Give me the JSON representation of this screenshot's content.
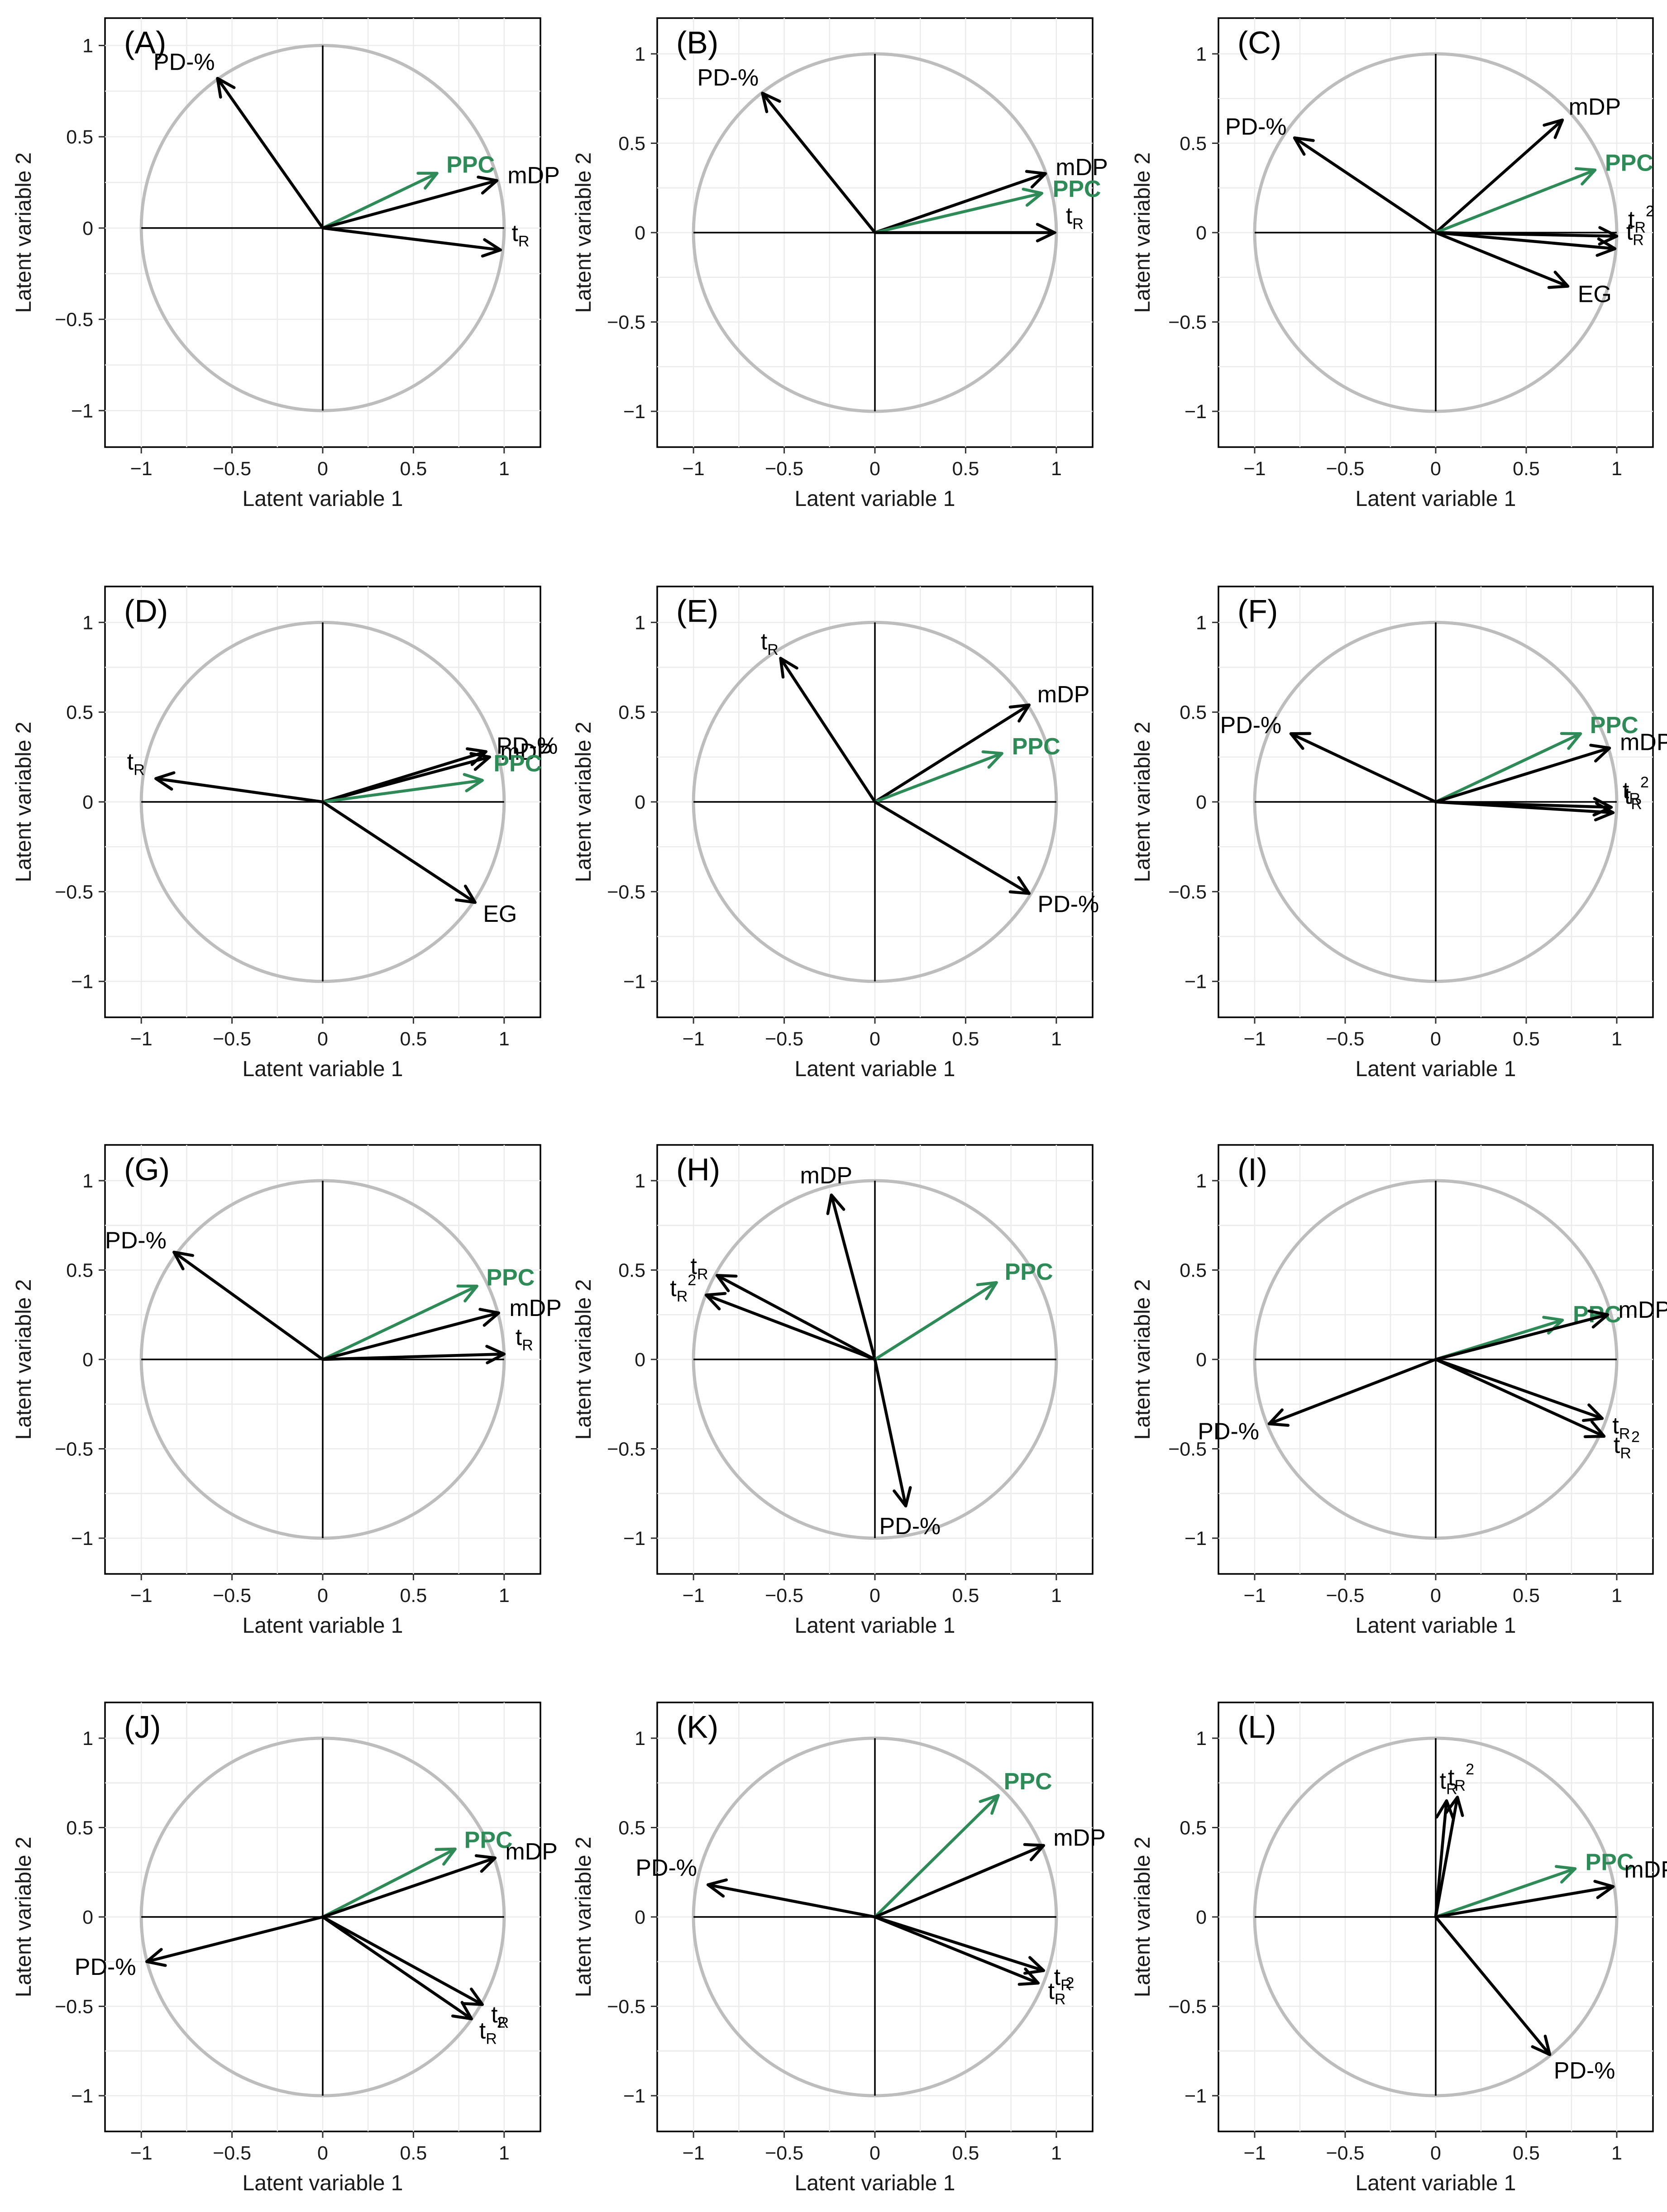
{
  "chart_data": [
    {
      "type": "scatter",
      "panel": "(A)",
      "xlabel": "Latent variable 1",
      "ylabel": "Latent variable 2",
      "xlim": [
        -1.2,
        1.2
      ],
      "ylim": [
        -1.2,
        1.15
      ],
      "xticks": [
        "-1",
        "-0.5",
        "0",
        "0.5",
        "1"
      ],
      "yticks": [
        "-1",
        "-0.5",
        "0",
        "0.5",
        "1"
      ],
      "vectors": [
        {
          "label": "PD-%",
          "x": -0.58,
          "y": 0.82,
          "color": "black"
        },
        {
          "label": "PPC",
          "x": 0.63,
          "y": 0.3,
          "color": "green"
        },
        {
          "label": "mDP",
          "x": 0.96,
          "y": 0.26,
          "color": "black"
        },
        {
          "label": "t",
          "sub": "R",
          "x": 0.98,
          "y": -0.12,
          "color": "black"
        }
      ]
    },
    {
      "type": "scatter",
      "panel": "(B)",
      "xlabel": "Latent variable 1",
      "ylabel": "Latent variable 2",
      "xlim": [
        -1.2,
        1.2
      ],
      "ylim": [
        -1.2,
        1.2
      ],
      "xticks": [
        "-1",
        "-0.5",
        "0",
        "0.5",
        "1"
      ],
      "yticks": [
        "-1",
        "-0.5",
        "0",
        "0.5",
        "1"
      ],
      "vectors": [
        {
          "label": "PD-%",
          "x": -0.62,
          "y": 0.78,
          "color": "black"
        },
        {
          "label": "mDP",
          "x": 0.94,
          "y": 0.33,
          "color": "black"
        },
        {
          "label": "PPC",
          "x": 0.92,
          "y": 0.22,
          "color": "green"
        },
        {
          "label": "t",
          "sub": "R",
          "x": 0.99,
          "y": 0.0,
          "color": "black"
        }
      ]
    },
    {
      "type": "scatter",
      "panel": "(C)",
      "xlabel": "Latent variable 1",
      "ylabel": "Latent variable 2",
      "xlim": [
        -1.2,
        1.2
      ],
      "ylim": [
        -1.2,
        1.2
      ],
      "xticks": [
        "-1",
        "-0.5",
        "0",
        "0.5",
        "1"
      ],
      "yticks": [
        "-1",
        "-0.5",
        "0",
        "0.5",
        "1"
      ],
      "vectors": [
        {
          "label": "PD-%",
          "x": -0.78,
          "y": 0.53,
          "color": "black"
        },
        {
          "label": "mDP",
          "x": 0.7,
          "y": 0.63,
          "color": "black"
        },
        {
          "label": "PPC",
          "x": 0.88,
          "y": 0.35,
          "color": "green"
        },
        {
          "label": "t",
          "sub": "R",
          "sup": "2",
          "x": 1.0,
          "y": -0.02,
          "color": "black"
        },
        {
          "label": "t",
          "sub": "R",
          "x": 0.99,
          "y": -0.09,
          "color": "black"
        },
        {
          "label": "EG",
          "x": 0.73,
          "y": -0.3,
          "color": "black"
        }
      ]
    },
    {
      "type": "scatter",
      "panel": "(D)",
      "xlabel": "Latent variable 1",
      "ylabel": "Latent variable 2",
      "xlim": [
        -1.2,
        1.2
      ],
      "ylim": [
        -1.2,
        1.2
      ],
      "xticks": [
        "-1",
        "-0.5",
        "0",
        "0.5",
        "1"
      ],
      "yticks": [
        "-1",
        "-0.5",
        "0",
        "0.5",
        "1"
      ],
      "vectors": [
        {
          "label": "PD-%",
          "x": 0.9,
          "y": 0.28,
          "color": "black"
        },
        {
          "label": "mDP",
          "x": 0.92,
          "y": 0.25,
          "color": "black"
        },
        {
          "label": "PPC",
          "x": 0.88,
          "y": 0.12,
          "color": "green"
        },
        {
          "label": "t",
          "sub": "R",
          "x": -0.92,
          "y": 0.13,
          "color": "black"
        },
        {
          "label": "EG",
          "x": 0.84,
          "y": -0.56,
          "color": "black"
        }
      ]
    },
    {
      "type": "scatter",
      "panel": "(E)",
      "xlabel": "Latent variable 1",
      "ylabel": "Latent variable 2",
      "xlim": [
        -1.2,
        1.2
      ],
      "ylim": [
        -1.2,
        1.2
      ],
      "xticks": [
        "-1",
        "-0.5",
        "0",
        "0.5",
        "1"
      ],
      "yticks": [
        "-1",
        "-0.5",
        "0",
        "0.5",
        "1"
      ],
      "vectors": [
        {
          "label": "t",
          "sub": "R",
          "x": -0.52,
          "y": 0.8,
          "color": "black"
        },
        {
          "label": "mDP",
          "x": 0.85,
          "y": 0.54,
          "color": "black"
        },
        {
          "label": "PPC",
          "x": 0.7,
          "y": 0.27,
          "color": "green"
        },
        {
          "label": "PD-%",
          "x": 0.85,
          "y": -0.51,
          "color": "black"
        }
      ]
    },
    {
      "type": "scatter",
      "panel": "(F)",
      "xlabel": "Latent variable 1",
      "ylabel": "Latent variable 2",
      "xlim": [
        -1.2,
        1.2
      ],
      "ylim": [
        -1.2,
        1.2
      ],
      "xticks": [
        "-1",
        "-0.5",
        "0",
        "0.5",
        "1"
      ],
      "yticks": [
        "-1",
        "-0.5",
        "0",
        "0.5",
        "1"
      ],
      "vectors": [
        {
          "label": "PD-%",
          "x": -0.8,
          "y": 0.38,
          "color": "black"
        },
        {
          "label": "PPC",
          "x": 0.8,
          "y": 0.38,
          "color": "green"
        },
        {
          "label": "mDP",
          "x": 0.96,
          "y": 0.3,
          "color": "black"
        },
        {
          "label": "t",
          "sub": "R",
          "sup": "2",
          "x": 0.97,
          "y": -0.03,
          "color": "black"
        },
        {
          "label": "t",
          "sub": "R",
          "x": 0.98,
          "y": -0.06,
          "color": "black"
        }
      ]
    },
    {
      "type": "scatter",
      "panel": "(G)",
      "xlabel": "Latent variable 1",
      "ylabel": "Latent variable 2",
      "xlim": [
        -1.2,
        1.2
      ],
      "ylim": [
        -1.2,
        1.2
      ],
      "xticks": [
        "-1",
        "-0.5",
        "0",
        "0.5",
        "1"
      ],
      "yticks": [
        "-1",
        "-0.5",
        "0",
        "0.5",
        "1"
      ],
      "vectors": [
        {
          "label": "PD-%",
          "x": -0.82,
          "y": 0.6,
          "color": "black"
        },
        {
          "label": "PPC",
          "x": 0.85,
          "y": 0.41,
          "color": "green"
        },
        {
          "label": "mDP",
          "x": 0.97,
          "y": 0.26,
          "color": "black"
        },
        {
          "label": "t",
          "sub": "R",
          "x": 1.0,
          "y": 0.03,
          "color": "black"
        }
      ]
    },
    {
      "type": "scatter",
      "panel": "(H)",
      "xlabel": "Latent variable 1",
      "ylabel": "Latent variable 2",
      "xlim": [
        -1.2,
        1.2
      ],
      "ylim": [
        -1.2,
        1.2
      ],
      "xticks": [
        "-1",
        "-0.5",
        "0",
        "0.5",
        "1"
      ],
      "yticks": [
        "-1",
        "-0.5",
        "0",
        "0.5",
        "1"
      ],
      "vectors": [
        {
          "label": "mDP",
          "x": -0.24,
          "y": 0.92,
          "color": "black"
        },
        {
          "label": "t",
          "sub": "R",
          "x": -0.87,
          "y": 0.47,
          "color": "black"
        },
        {
          "label": "t",
          "sub": "R",
          "sup": "2",
          "x": -0.93,
          "y": 0.36,
          "color": "black"
        },
        {
          "label": "PPC",
          "x": 0.67,
          "y": 0.43,
          "color": "green"
        },
        {
          "label": "PD-%",
          "x": 0.17,
          "y": -0.82,
          "color": "black"
        }
      ]
    },
    {
      "type": "scatter",
      "panel": "(I)",
      "xlabel": "Latent variable 1",
      "ylabel": "Latent variable 2",
      "xlim": [
        -1.2,
        1.2
      ],
      "ylim": [
        -1.2,
        1.2
      ],
      "xticks": [
        "-1",
        "-0.5",
        "0",
        "0.5",
        "1"
      ],
      "yticks": [
        "-1",
        "-0.5",
        "0",
        "0.5",
        "1"
      ],
      "vectors": [
        {
          "label": "PPC",
          "x": 0.7,
          "y": 0.22,
          "color": "green"
        },
        {
          "label": "mDP",
          "x": 0.95,
          "y": 0.25,
          "color": "black"
        },
        {
          "label": "t",
          "sub": "R",
          "x": 0.92,
          "y": -0.33,
          "color": "black"
        },
        {
          "label": "t",
          "sub": "R",
          "sup": "2",
          "x": 0.93,
          "y": -0.43,
          "color": "black"
        },
        {
          "label": "PD-%",
          "x": -0.92,
          "y": -0.36,
          "color": "black"
        }
      ]
    },
    {
      "type": "scatter",
      "panel": "(J)",
      "xlabel": "Latent variable 1",
      "ylabel": "Latent variable 2",
      "xlim": [
        -1.2,
        1.2
      ],
      "ylim": [
        -1.2,
        1.2
      ],
      "xticks": [
        "-1",
        "-0.5",
        "0",
        "0.5",
        "1"
      ],
      "yticks": [
        "-1",
        "-0.5",
        "0",
        "0.5",
        "1"
      ],
      "vectors": [
        {
          "label": "PPC",
          "x": 0.73,
          "y": 0.38,
          "color": "green"
        },
        {
          "label": "mDP",
          "x": 0.95,
          "y": 0.33,
          "color": "black"
        },
        {
          "label": "t",
          "sub": "R",
          "x": 0.88,
          "y": -0.49,
          "color": "black"
        },
        {
          "label": "t",
          "sub": "R",
          "sup": "2",
          "x": 0.82,
          "y": -0.57,
          "color": "black"
        },
        {
          "label": "PD-%",
          "x": -0.97,
          "y": -0.25,
          "color": "black"
        }
      ]
    },
    {
      "type": "scatter",
      "panel": "(K)",
      "xlabel": "Latent variable 1",
      "ylabel": "Latent variable 2",
      "xlim": [
        -1.2,
        1.2
      ],
      "ylim": [
        -1.2,
        1.2
      ],
      "xticks": [
        "-1",
        "-0.5",
        "0",
        "0.5",
        "1"
      ],
      "yticks": [
        "-1",
        "-0.5",
        "0",
        "0.5",
        "1"
      ],
      "vectors": [
        {
          "label": "PPC",
          "x": 0.68,
          "y": 0.68,
          "color": "green"
        },
        {
          "label": "mDP",
          "x": 0.93,
          "y": 0.4,
          "color": "black"
        },
        {
          "label": "PD-%",
          "x": -0.92,
          "y": 0.18,
          "color": "black"
        },
        {
          "label": "t",
          "sub": "R",
          "x": 0.93,
          "y": -0.3,
          "color": "black"
        },
        {
          "label": "t",
          "sub": "R",
          "sup": "2",
          "x": 0.9,
          "y": -0.37,
          "color": "black"
        }
      ]
    },
    {
      "type": "scatter",
      "panel": "(L)",
      "xlabel": "Latent variable 1",
      "ylabel": "Latent variable 2",
      "xlim": [
        -1.2,
        1.2
      ],
      "ylim": [
        -1.2,
        1.2
      ],
      "xticks": [
        "-1",
        "-0.5",
        "0",
        "0.5",
        "1"
      ],
      "yticks": [
        "-1",
        "-0.5",
        "0",
        "0.5",
        "1"
      ],
      "vectors": [
        {
          "label": "t",
          "sub": "R",
          "x": 0.06,
          "y": 0.65,
          "color": "black"
        },
        {
          "label": "t",
          "sub": "R",
          "sup": "2",
          "x": 0.12,
          "y": 0.67,
          "color": "black"
        },
        {
          "label": "PPC",
          "x": 0.77,
          "y": 0.27,
          "color": "green"
        },
        {
          "label": "mDP",
          "x": 0.98,
          "y": 0.17,
          "color": "black"
        },
        {
          "label": "PD-%",
          "x": 0.63,
          "y": -0.77,
          "color": "black"
        }
      ]
    }
  ]
}
